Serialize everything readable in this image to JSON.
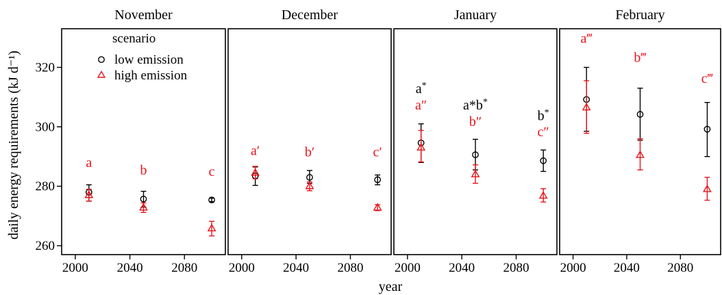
{
  "chart_data": {
    "type": "scatter",
    "xlabel": "year",
    "ylabel": "daily energy requirements (kJ d⁻¹)",
    "ylim": [
      257,
      333
    ],
    "xlim": [
      1990,
      2110
    ],
    "y_ticks": [
      260,
      280,
      300,
      320
    ],
    "x_ticks": [
      2000,
      2040,
      2080
    ],
    "legend": {
      "title": "scenario",
      "placement": "top-left",
      "entries": [
        {
          "label": "low emission",
          "marker": "circle",
          "color": "#000000"
        },
        {
          "label": "high emission",
          "marker": "triangle",
          "color": "#e8141b"
        }
      ]
    },
    "error_bars": true,
    "panels": [
      {
        "title": "November",
        "series": [
          {
            "name": "low emission",
            "x": [
              2010,
              2050,
              2100
            ],
            "y": [
              278.0,
              275.7,
              275.4
            ],
            "err_low": [
              275.0,
              273.0,
              274.8
            ],
            "err_high": [
              280.5,
              278.3,
              276.0
            ]
          },
          {
            "name": "high emission",
            "x": [
              2010,
              2050,
              2100
            ],
            "y": [
              277.0,
              272.8,
              265.8
            ],
            "err_low": [
              275.0,
              271.2,
              263.3
            ],
            "err_high": [
              279.0,
              274.4,
              268.2
            ]
          }
        ],
        "annotations": [
          {
            "x": 2010,
            "y": 286.5,
            "color": "#e8141b",
            "text": "a",
            "sup": ""
          },
          {
            "x": 2050,
            "y": 284.0,
            "color": "#e8141b",
            "text": "b",
            "sup": ""
          },
          {
            "x": 2100,
            "y": 283.5,
            "color": "#e8141b",
            "text": "c",
            "sup": ""
          }
        ]
      },
      {
        "title": "December",
        "series": [
          {
            "name": "low emission",
            "x": [
              2010,
              2050,
              2100
            ],
            "y": [
              283.5,
              283.0,
              282.2
            ],
            "err_low": [
              280.3,
              281.0,
              280.5
            ],
            "err_high": [
              286.5,
              285.3,
              283.8
            ]
          },
          {
            "name": "high emission",
            "x": [
              2010,
              2050,
              2100
            ],
            "y": [
              284.5,
              280.0,
              272.8
            ],
            "err_low": [
              282.5,
              278.5,
              271.8
            ],
            "err_high": [
              286.7,
              281.5,
              273.8
            ]
          }
        ],
        "annotations": [
          {
            "x": 2010,
            "y": 290.5,
            "color": "#e8141b",
            "text": "a′",
            "sup": ""
          },
          {
            "x": 2050,
            "y": 290.0,
            "color": "#e8141b",
            "text": "b′",
            "sup": ""
          },
          {
            "x": 2100,
            "y": 290.0,
            "color": "#e8141b",
            "text": "c′",
            "sup": ""
          }
        ]
      },
      {
        "title": "January",
        "series": [
          {
            "name": "low emission",
            "x": [
              2010,
              2050,
              2100
            ],
            "y": [
              294.6,
              290.6,
              288.6
            ],
            "err_low": [
              288.0,
              285.5,
              285.0
            ],
            "err_high": [
              301.0,
              295.8,
              292.2
            ]
          },
          {
            "name": "high emission",
            "x": [
              2010,
              2050,
              2100
            ],
            "y": [
              293.0,
              284.0,
              276.8
            ],
            "err_low": [
              288.2,
              281.0,
              274.7
            ],
            "err_high": [
              298.8,
              287.2,
              279.2
            ]
          }
        ],
        "annotations": [
          {
            "x": 2010,
            "y": 311.3,
            "color": "#000000",
            "text": "a",
            "sup": "*"
          },
          {
            "x": 2010,
            "y": 305.8,
            "color": "#e8141b",
            "text": "a″",
            "sup": ""
          },
          {
            "x": 2050,
            "y": 305.8,
            "color": "#000000",
            "text": "a*b",
            "sup": "*"
          },
          {
            "x": 2050,
            "y": 300.3,
            "color": "#e8141b",
            "text": "b″",
            "sup": ""
          },
          {
            "x": 2100,
            "y": 302.2,
            "color": "#000000",
            "text": "b",
            "sup": "*"
          },
          {
            "x": 2100,
            "y": 296.8,
            "color": "#e8141b",
            "text": "c″",
            "sup": ""
          }
        ]
      },
      {
        "title": "February",
        "series": [
          {
            "name": "low emission",
            "x": [
              2010,
              2050,
              2100
            ],
            "y": [
              309.2,
              304.2,
              299.2
            ],
            "err_low": [
              298.5,
              295.5,
              290.0
            ],
            "err_high": [
              320.0,
              313.0,
              308.2
            ]
          },
          {
            "name": "high emission",
            "x": [
              2010,
              2050,
              2100
            ],
            "y": [
              306.5,
              290.5,
              279.0
            ],
            "err_low": [
              297.8,
              285.5,
              275.3
            ],
            "err_high": [
              315.5,
              296.0,
              283.0
            ]
          }
        ],
        "annotations": [
          {
            "x": 2010,
            "y": 328.3,
            "color": "#e8141b",
            "text": "a‴",
            "sup": ""
          },
          {
            "x": 2050,
            "y": 321.8,
            "color": "#e8141b",
            "text": "b‴",
            "sup": ""
          },
          {
            "x": 2100,
            "y": 314.8,
            "color": "#e8141b",
            "text": "c‴",
            "sup": ""
          }
        ]
      }
    ]
  }
}
